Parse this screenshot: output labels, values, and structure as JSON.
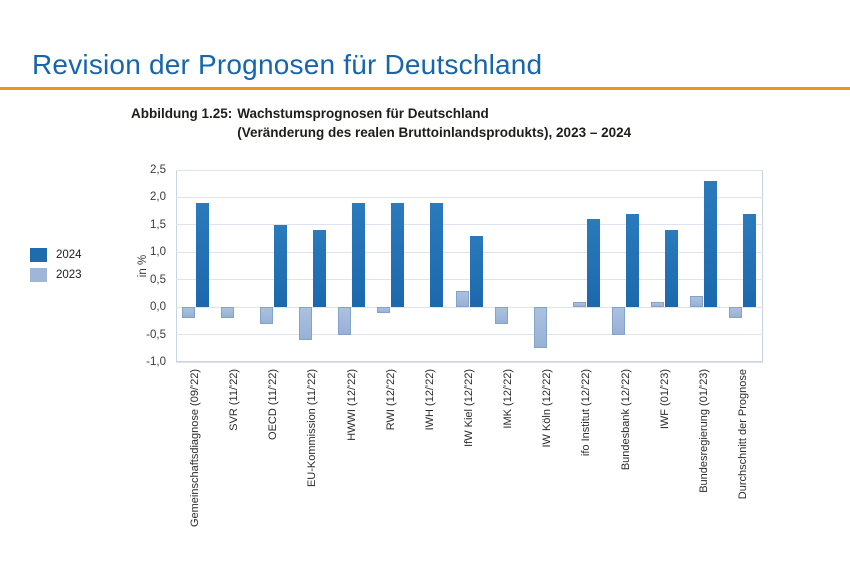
{
  "page": {
    "title": "Revision der Prognosen für Deutschland",
    "title_color": "#1566ad",
    "divider_color": "#f0921e"
  },
  "figure": {
    "caption_prefix": "Abbildung 1.25:",
    "caption_line1": "Wachstumsprognosen für Deutschland",
    "caption_line2": "(Veränderung des realen Bruttoinlandsprodukts), 2023 – 2024"
  },
  "legend": {
    "items": [
      {
        "label": "2024",
        "color": "#1e6bae"
      },
      {
        "label": "2023",
        "color": "#9fb6d9"
      }
    ]
  },
  "chart_data": {
    "type": "bar",
    "title": "Wachstumsprognosen für Deutschland (Veränderung des realen Bruttoinlandsprodukts), 2023 – 2024",
    "ylabel": "in %",
    "ylim": [
      -1.0,
      2.5
    ],
    "tick_step": 0.5,
    "y_ticks": [
      "2,5",
      "2,0",
      "1,5",
      "1,0",
      "0,5",
      "0,0",
      "-0,5",
      "-1,0"
    ],
    "grid": true,
    "legend_position": "left",
    "categories": [
      "Gemeinschaftsdiagnose (09/'22)",
      "SVR (11/'22)",
      "OECD (11/'22)",
      "EU-Kommission (11/'22)",
      "HWWI (12/'22)",
      "RWI (12/'22)",
      "IWH (12/'22)",
      "IfW Kiel (12/'22)",
      "IMK (12/'22)",
      "IW Köln (12/'22)",
      "ifo Institut (12/'22)",
      "Bundesbank (12/'22)",
      "IWF (01/'23)",
      "Bundesregierung (01/'23)",
      "Durchschnitt der Prognose"
    ],
    "series": [
      {
        "name": "2024",
        "color": "#1e6bae",
        "values": [
          1.9,
          null,
          1.5,
          1.4,
          1.9,
          1.9,
          1.9,
          1.3,
          null,
          null,
          1.6,
          1.7,
          1.4,
          2.3,
          1.7
        ]
      },
      {
        "name": "2023",
        "color": "#9fb6d9",
        "values": [
          -0.2,
          -0.2,
          -0.3,
          -0.6,
          -0.5,
          -0.1,
          0.0,
          0.3,
          -0.3,
          -0.75,
          0.1,
          -0.5,
          0.1,
          0.2,
          -0.2
        ]
      }
    ]
  }
}
